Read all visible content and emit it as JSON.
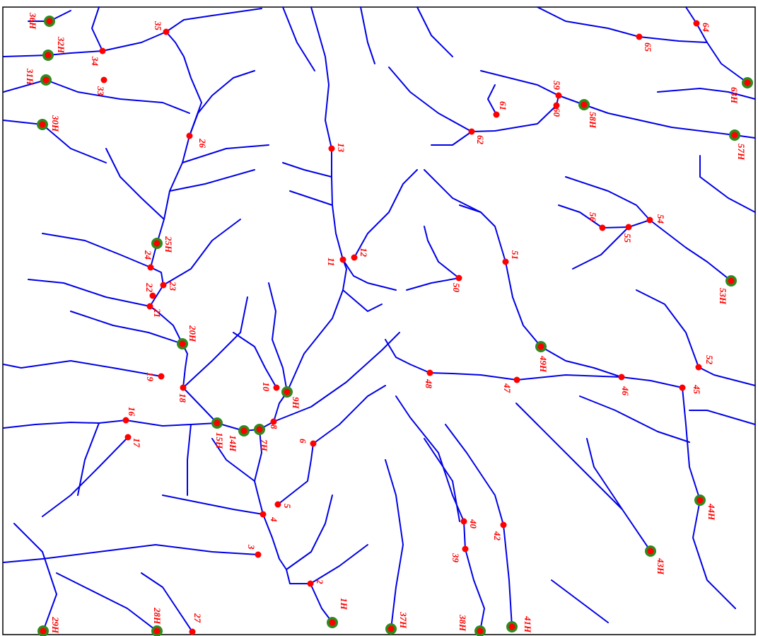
{
  "points": [
    {
      "label": "36H"
    },
    {
      "label": "32H"
    },
    {
      "label": "31H"
    },
    {
      "label": "34"
    },
    {
      "label": "35"
    },
    {
      "label": "33"
    },
    {
      "label": "30H"
    },
    {
      "label": "26"
    },
    {
      "label": "13"
    },
    {
      "label": "64"
    },
    {
      "label": "65"
    },
    {
      "label": "63H"
    },
    {
      "label": "59"
    },
    {
      "label": "60"
    },
    {
      "label": "61"
    },
    {
      "label": "58H"
    },
    {
      "label": "62"
    },
    {
      "label": "57H"
    },
    {
      "label": "25H"
    },
    {
      "label": "24"
    },
    {
      "label": "56"
    },
    {
      "label": "55"
    },
    {
      "label": "54"
    },
    {
      "label": "11"
    },
    {
      "label": "12"
    },
    {
      "label": "51"
    },
    {
      "label": "23"
    },
    {
      "label": "22"
    },
    {
      "label": "21"
    },
    {
      "label": "50"
    },
    {
      "label": "53H"
    },
    {
      "label": "20H"
    },
    {
      "label": "49H"
    },
    {
      "label": "52"
    },
    {
      "label": "48"
    },
    {
      "label": "19"
    },
    {
      "label": "47"
    },
    {
      "label": "46"
    },
    {
      "label": "45"
    },
    {
      "label": "18"
    },
    {
      "label": "10"
    },
    {
      "label": "9H"
    },
    {
      "label": "16"
    },
    {
      "label": "8"
    },
    {
      "label": "15H"
    },
    {
      "label": "14H"
    },
    {
      "label": "7H"
    },
    {
      "label": "17"
    },
    {
      "label": "6"
    },
    {
      "label": "44H"
    },
    {
      "label": "5"
    },
    {
      "label": "4"
    },
    {
      "label": "40"
    },
    {
      "label": "42"
    },
    {
      "label": "3"
    },
    {
      "label": "39"
    },
    {
      "label": "43H"
    },
    {
      "label": "2"
    },
    {
      "label": "1H"
    },
    {
      "label": "37H"
    },
    {
      "label": "38H"
    },
    {
      "label": "41H"
    },
    {
      "label": "29H"
    },
    {
      "label": "28H"
    },
    {
      "label": "27"
    }
  ]
}
